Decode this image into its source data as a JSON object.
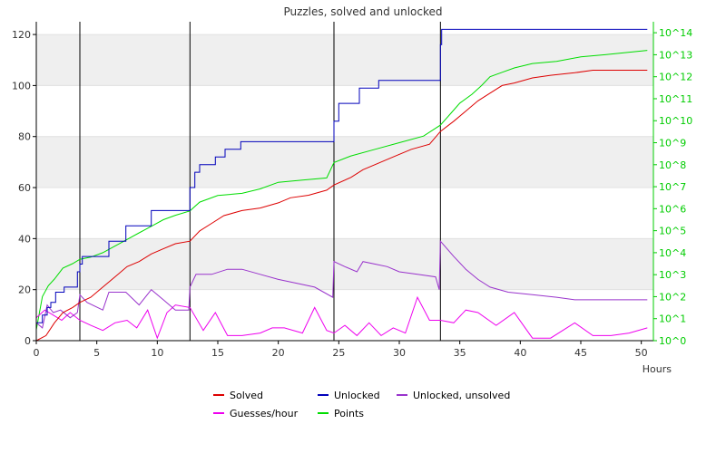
{
  "chart_data": {
    "type": "line",
    "title": "Puzzles, solved and unlocked",
    "xlabel": "Hours",
    "xlim": [
      0,
      51
    ],
    "ylim": [
      0,
      125
    ],
    "y2lim": [
      0,
      14.5
    ],
    "y2scale": "log",
    "xticks": [
      "0",
      "5",
      "10",
      "15",
      "20",
      "25",
      "30",
      "35",
      "40",
      "45",
      "50"
    ],
    "yticks": [
      "0",
      "20",
      "40",
      "60",
      "80",
      "100",
      "120"
    ],
    "y2ticks": [
      "10^0",
      "10^1",
      "10^2",
      "10^3",
      "10^4",
      "10^5",
      "10^6",
      "10^7",
      "10^8",
      "10^9",
      "10^10",
      "10^11",
      "10^12",
      "10^13",
      "10^14"
    ],
    "grid": "horizontal bands",
    "legend_position": "bottom",
    "vertical_markers": [
      3.6,
      12.7,
      24.6,
      33.4
    ],
    "series": [
      {
        "name": "Solved",
        "color": "#dd0000",
        "axis": "left",
        "x": [
          0,
          0.8,
          1.5,
          2.2,
          3.0,
          3.6,
          4.5,
          5.5,
          6.5,
          7.5,
          8.5,
          9.5,
          10.5,
          11.5,
          12.7,
          13.5,
          14.5,
          15.5,
          17,
          18.5,
          20,
          21,
          22.5,
          24,
          24.6,
          26,
          27,
          28,
          29.5,
          31,
          32.5,
          33.4,
          34.5,
          35.5,
          36.5,
          37.5,
          38.5,
          39.5,
          41,
          42.5,
          44.5,
          46,
          48,
          50.5
        ],
        "values": [
          0,
          2,
          7,
          11,
          13,
          15,
          17,
          21,
          25,
          29,
          31,
          34,
          36,
          38,
          39,
          43,
          46,
          49,
          51,
          52,
          54,
          56,
          57,
          59,
          61,
          64,
          67,
          69,
          72,
          75,
          77,
          82,
          86,
          90,
          94,
          97,
          100,
          101,
          103,
          104,
          105,
          106,
          106,
          106
        ]
      },
      {
        "name": "Unlocked",
        "color": "#0000bb",
        "axis": "left",
        "x": [
          0,
          0.5,
          0.9,
          1.2,
          1.6,
          2.3,
          3.4,
          3.6,
          3.8,
          6,
          7.4,
          9.5,
          12.6,
          12.7,
          13.1,
          13.5,
          14.8,
          15.6,
          16.9,
          24.5,
          24.6,
          25,
          26.7,
          28.3,
          33.3,
          33.4,
          33.5,
          50.5
        ],
        "values": [
          7,
          10,
          13,
          15,
          19,
          21,
          27,
          30,
          33,
          39,
          45,
          51,
          51,
          60,
          66,
          69,
          72,
          75,
          78,
          78,
          86,
          93,
          99,
          102,
          102,
          116,
          122,
          122
        ]
      },
      {
        "name": "Unlocked, unsolved",
        "color": "#9933cc",
        "axis": "left",
        "x": [
          0,
          0.5,
          0.9,
          1.4,
          2.0,
          2.8,
          3.4,
          3.6,
          4.2,
          5.5,
          6.0,
          7.4,
          8.5,
          9.5,
          10.5,
          11.5,
          12.6,
          12.7,
          13.2,
          14.5,
          15.8,
          17,
          18.5,
          20,
          22,
          23,
          24.5,
          24.6,
          25.5,
          26.5,
          27,
          28,
          29,
          30,
          31.5,
          33,
          33.3,
          33.4,
          34.5,
          35.5,
          36.5,
          37.5,
          39,
          41,
          43,
          44.5,
          47,
          50.5
        ],
        "values": [
          7,
          5,
          14,
          11,
          12,
          9,
          11,
          18,
          15,
          12,
          19,
          19,
          14,
          20,
          16,
          12,
          12,
          21,
          26,
          26,
          28,
          28,
          26,
          24,
          22,
          21,
          17,
          31,
          29,
          27,
          31,
          30,
          29,
          27,
          26,
          25,
          20,
          39,
          33,
          28,
          24,
          21,
          19,
          18,
          17,
          16,
          16,
          16
        ]
      },
      {
        "name": "Guesses/hour",
        "color": "#ee00ee",
        "axis": "left",
        "x": [
          0,
          0.7,
          1.4,
          2.1,
          2.8,
          3.6,
          4.5,
          5.5,
          6.5,
          7.5,
          8.3,
          9.2,
          10.0,
          10.8,
          11.5,
          12.7,
          13.8,
          14.8,
          15.8,
          17,
          18.5,
          19.5,
          20.5,
          22,
          23,
          24,
          24.6,
          25.5,
          26.5,
          27.5,
          28.5,
          29.5,
          30.5,
          31.5,
          32.5,
          33.4,
          34.5,
          35.5,
          36.5,
          38,
          39.5,
          41,
          42.5,
          44.5,
          46,
          47.5,
          49,
          50.5
        ],
        "values": [
          9,
          12,
          10,
          8,
          11,
          8,
          6,
          4,
          7,
          8,
          5,
          12,
          1,
          11,
          14,
          13,
          4,
          11,
          2,
          2,
          3,
          5,
          5,
          3,
          13,
          4,
          3,
          6,
          2,
          7,
          2,
          5,
          3,
          17,
          8,
          8,
          7,
          12,
          11,
          6,
          11,
          1,
          1,
          7,
          2,
          2,
          3,
          5
        ]
      },
      {
        "name": "Points",
        "color": "#00dd00",
        "axis": "right",
        "x": [
          0,
          0.5,
          1.0,
          1.5,
          2.2,
          3.0,
          3.6,
          4.5,
          5.5,
          6.5,
          7.5,
          8.5,
          9.5,
          10.5,
          11.5,
          12.7,
          13.5,
          15,
          17,
          18.5,
          20,
          22,
          24,
          24.6,
          26,
          28,
          30,
          32,
          33.4,
          34.2,
          35,
          36,
          36.8,
          37.5,
          38.5,
          39.5,
          41,
          43,
          45,
          47,
          50.5
        ],
        "values": [
          0.5,
          2.0,
          2.5,
          2.8,
          3.3,
          3.5,
          3.7,
          3.8,
          4.0,
          4.3,
          4.6,
          4.9,
          5.2,
          5.5,
          5.7,
          5.9,
          6.3,
          6.6,
          6.7,
          6.9,
          7.2,
          7.3,
          7.4,
          8.1,
          8.4,
          8.7,
          9.0,
          9.3,
          9.8,
          10.3,
          10.8,
          11.2,
          11.6,
          12.0,
          12.2,
          12.4,
          12.6,
          12.7,
          12.9,
          13.0,
          13.2
        ]
      }
    ]
  }
}
